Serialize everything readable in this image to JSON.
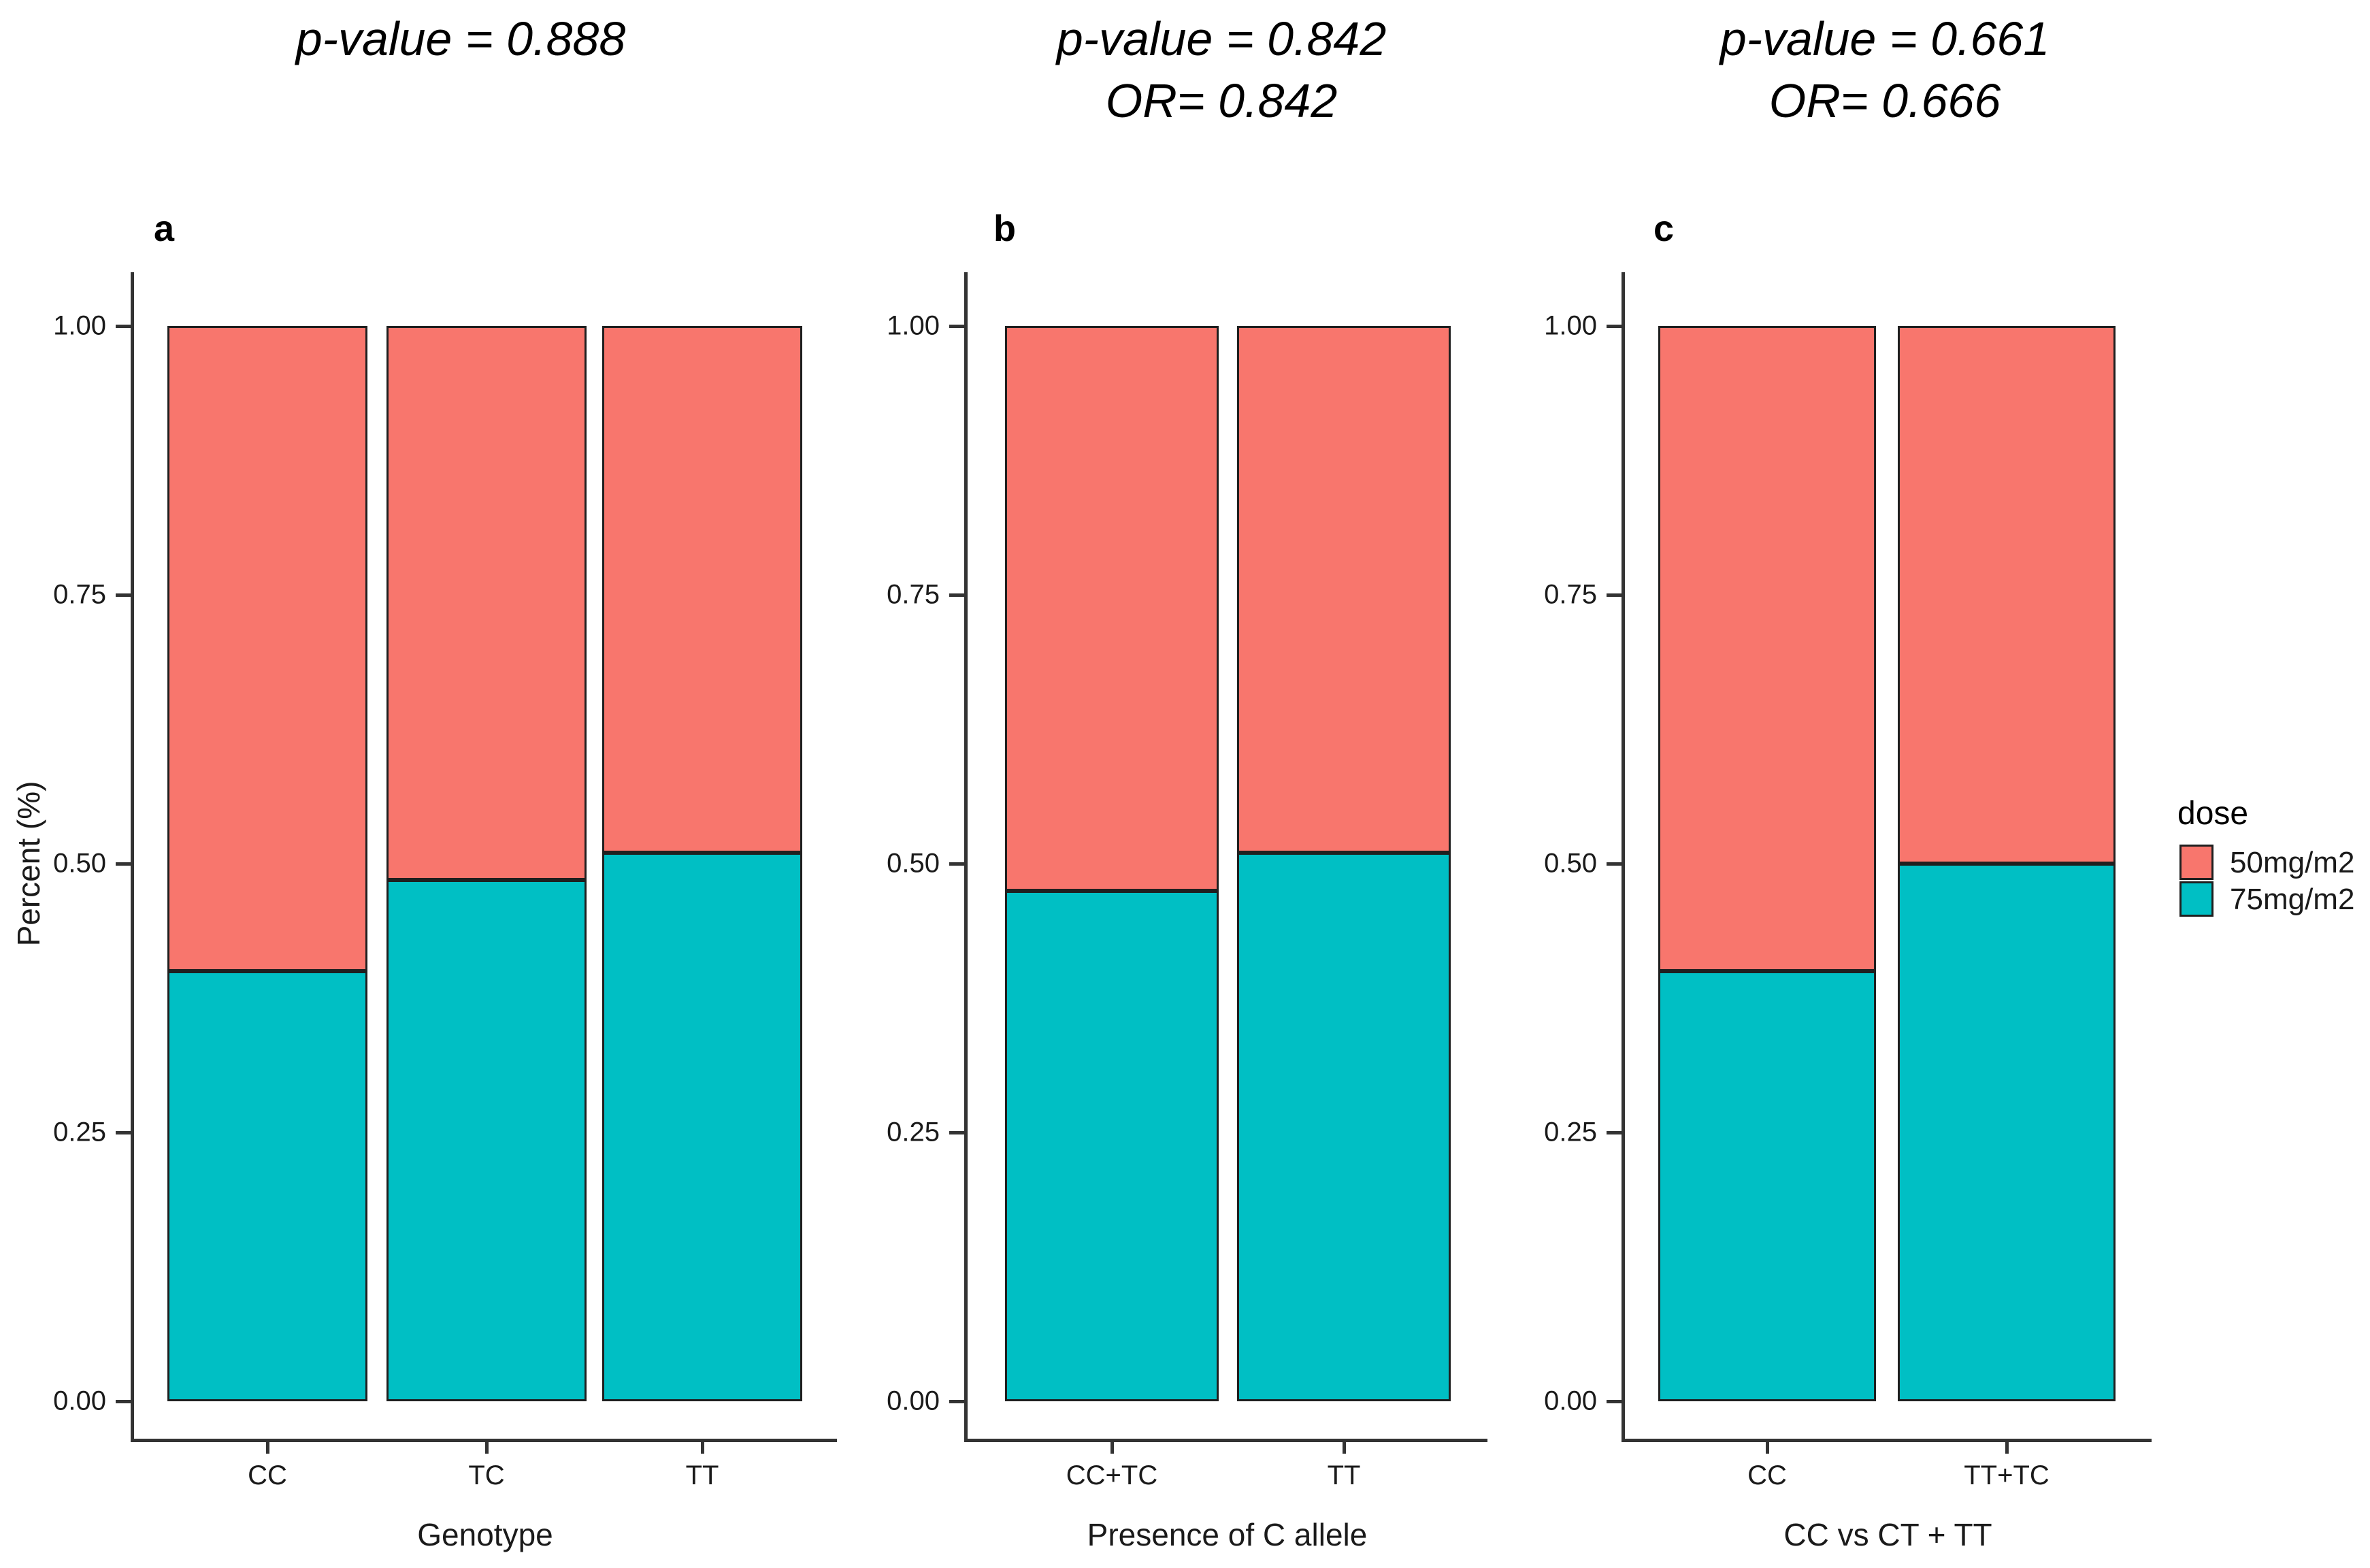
{
  "figure": {
    "background": "#ffffff",
    "colors": {
      "dose50": "#F8766D",
      "dose75": "#00BFC4",
      "axis_line": "#333333",
      "bar_border": "#1f1f1f",
      "text": "#1a1a1a"
    },
    "y_axis": {
      "title": "Percent (%)",
      "tick_labels": [
        "0.00",
        "0.25",
        "0.50",
        "0.75",
        "1.00"
      ],
      "tick_values": [
        0,
        0.25,
        0.5,
        0.75,
        1.0
      ]
    },
    "legend": {
      "title": "dose",
      "items": [
        {
          "label": "50mg/m2",
          "color_key": "dose50"
        },
        {
          "label": "75mg/m2",
          "color_key": "dose75"
        }
      ]
    }
  },
  "chart_data": [
    {
      "type": "bar",
      "stacked": true,
      "panel_letter": "a",
      "title_lines": [
        "p-value = 0.888"
      ],
      "xlabel": "Genotype",
      "ylabel": "Percent (%)",
      "ylim": [
        0,
        1
      ],
      "categories": [
        "CC",
        "TC",
        "TT"
      ],
      "series": [
        {
          "name": "75mg/m2",
          "color_key": "dose75",
          "values": [
            0.4,
            0.485,
            0.51
          ]
        },
        {
          "name": "50mg/m2",
          "color_key": "dose50",
          "values": [
            0.6,
            0.515,
            0.49
          ]
        }
      ]
    },
    {
      "type": "bar",
      "stacked": true,
      "panel_letter": "b",
      "title_lines": [
        "p-value = 0.842",
        "OR= 0.842"
      ],
      "xlabel": "Presence of C allele",
      "ylabel": "Percent (%)",
      "ylim": [
        0,
        1
      ],
      "categories": [
        "CC+TC",
        "TT"
      ],
      "series": [
        {
          "name": "75mg/m2",
          "color_key": "dose75",
          "values": [
            0.475,
            0.51
          ]
        },
        {
          "name": "50mg/m2",
          "color_key": "dose50",
          "values": [
            0.525,
            0.49
          ]
        }
      ]
    },
    {
      "type": "bar",
      "stacked": true,
      "panel_letter": "c",
      "title_lines": [
        "p-value = 0.661",
        "OR= 0.666"
      ],
      "xlabel": "CC vs CT + TT",
      "ylabel": "Percent (%)",
      "ylim": [
        0,
        1
      ],
      "categories": [
        "CC",
        "TT+TC"
      ],
      "series": [
        {
          "name": "75mg/m2",
          "color_key": "dose75",
          "values": [
            0.4,
            0.5
          ]
        },
        {
          "name": "50mg/m2",
          "color_key": "dose50",
          "values": [
            0.6,
            0.5
          ]
        }
      ]
    }
  ]
}
